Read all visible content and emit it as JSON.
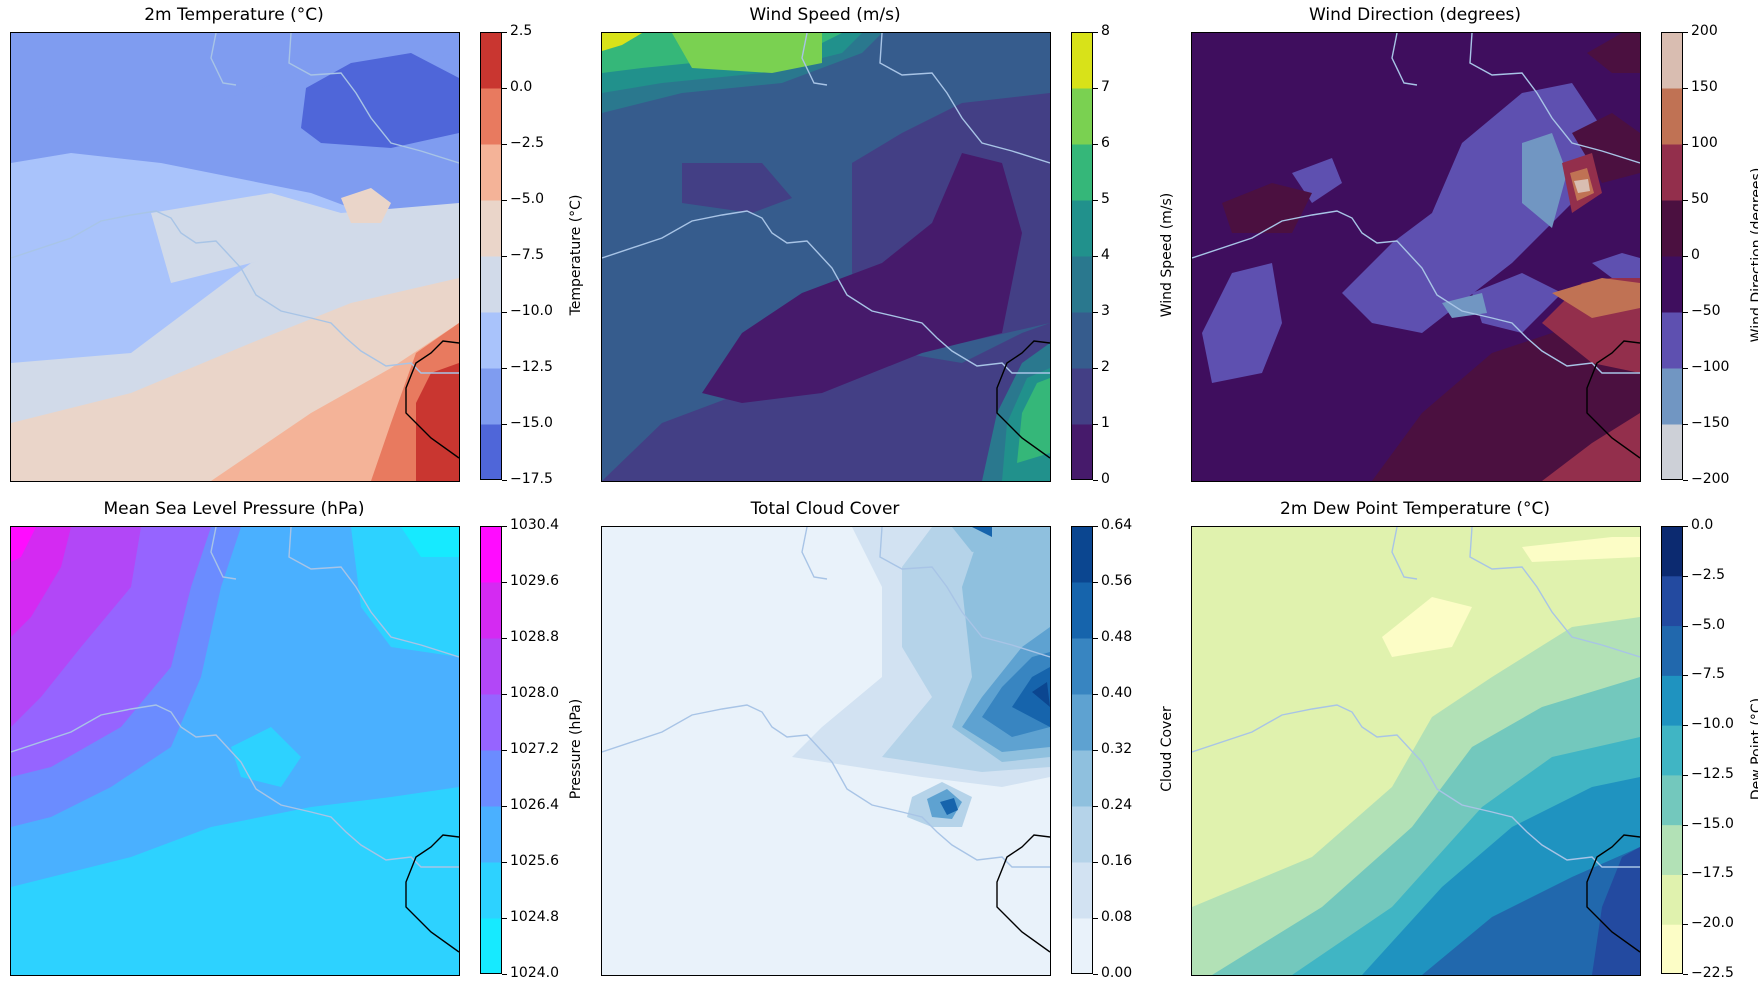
{
  "chart_data": [
    {
      "type": "heatmap",
      "title": "2m Temperature (°C)",
      "colorbar_label": "Temperature (°C)",
      "ticks": [
        "2.5",
        "0.0",
        "−2.5",
        "−5.0",
        "−7.5",
        "−10.0",
        "−12.5",
        "−15.0",
        "−17.5"
      ],
      "levels": [
        -17.5,
        -15.0,
        -12.5,
        -10.0,
        -7.5,
        -5.0,
        -2.5,
        0.0,
        2.5
      ],
      "colors": [
        "#4f66d9",
        "#7f9cf0",
        "#a9c3fb",
        "#d1dae9",
        "#ead5c9",
        "#f4b398",
        "#e87a5f",
        "#c93630"
      ]
    },
    {
      "type": "heatmap",
      "title": "Wind Speed (m/s)",
      "colorbar_label": "Wind Speed (m/s)",
      "ticks": [
        "8",
        "7",
        "6",
        "5",
        "4",
        "3",
        "2",
        "1",
        "0"
      ],
      "levels": [
        0,
        1,
        2,
        3,
        4,
        5,
        6,
        7,
        8
      ],
      "colors": [
        "#461a6b",
        "#433f85",
        "#365c8d",
        "#2a788e",
        "#21918c",
        "#35b779",
        "#7ad151",
        "#d8e219"
      ]
    },
    {
      "type": "heatmap",
      "title": "Wind Direction (degrees)",
      "colorbar_label": "Wind Direction (degrees)",
      "ticks": [
        "200",
        "150",
        "100",
        "50",
        "0",
        "−50",
        "−100",
        "−150",
        "−200"
      ],
      "levels": [
        -200,
        -150,
        -100,
        -50,
        0,
        50,
        100,
        150,
        200
      ],
      "colors": [
        "#cdd0d7",
        "#7196c2",
        "#5e50b0",
        "#3f0e5e",
        "#4b1040",
        "#932f4c",
        "#c07254",
        "#d9bdb1"
      ]
    },
    {
      "type": "heatmap",
      "title": "Mean Sea Level Pressure (hPa)",
      "colorbar_label": "Pressure (hPa)",
      "ticks": [
        "1030.4",
        "1029.6",
        "1028.8",
        "1028.0",
        "1027.2",
        "1026.4",
        "1025.6",
        "1024.8",
        "1024.0"
      ],
      "levels": [
        1024.0,
        1024.8,
        1025.6,
        1026.4,
        1027.2,
        1028.0,
        1028.8,
        1029.6,
        1030.4
      ],
      "colors": [
        "#16eaff",
        "#2dd2ff",
        "#4ab0ff",
        "#6b8cff",
        "#9664ff",
        "#b247f7",
        "#d42af2",
        "#ff0cff"
      ]
    },
    {
      "type": "heatmap",
      "title": "Total Cloud Cover",
      "colorbar_label": "Cloud Cover",
      "ticks": [
        "0.64",
        "0.56",
        "0.48",
        "0.40",
        "0.32",
        "0.24",
        "0.16",
        "0.08",
        "0.00"
      ],
      "levels": [
        0.0,
        0.08,
        0.16,
        0.24,
        0.32,
        0.4,
        0.48,
        0.56,
        0.64
      ],
      "colors": [
        "#e9f2fa",
        "#d2e2f2",
        "#b5d3e9",
        "#8fc0de",
        "#5ea2d1",
        "#3885c1",
        "#1664ac",
        "#0b4690"
      ]
    },
    {
      "type": "heatmap",
      "title": "2m Dew Point Temperature (°C)",
      "colorbar_label": "Dew Point (°C)",
      "ticks": [
        "0.0",
        "−2.5",
        "−5.0",
        "−7.5",
        "−10.0",
        "−12.5",
        "−15.0",
        "−17.5",
        "−20.0",
        "−22.5"
      ],
      "levels": [
        -22.5,
        -20.0,
        -17.5,
        -15.0,
        -12.5,
        -10.0,
        -7.5,
        -5.0,
        -2.5,
        0.0
      ],
      "colors": [
        "#fcfdc6",
        "#e0f2ae",
        "#b2e1b6",
        "#73c8bd",
        "#40b5c4",
        "#1f93c0",
        "#2168ad",
        "#234aa0",
        "#0c2a70"
      ]
    }
  ]
}
